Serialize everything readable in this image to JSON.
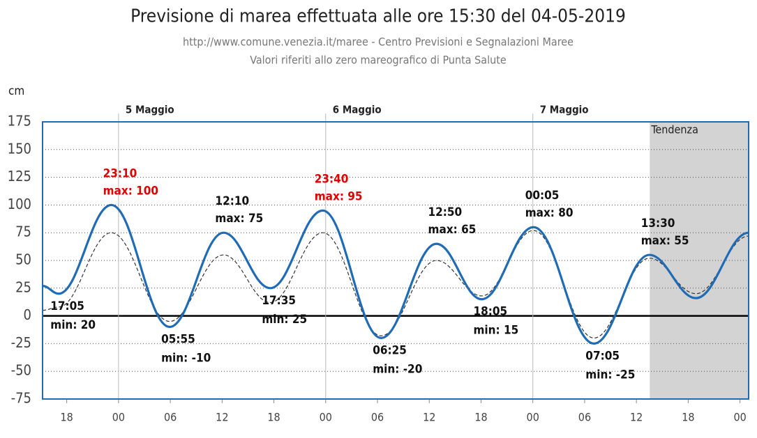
{
  "chart_data": {
    "type": "line",
    "title": "Previsione di marea effettuata alle ore 15:30 del 04-05-2019",
    "subtitle": [
      "http://www.comune.venezia.it/maree - Centro Previsioni e Segnalazioni Maree",
      "Valori riferiti allo zero mareografico di Punta Salute"
    ],
    "y_label": "cm",
    "x": [
      -8.8,
      -6.92,
      -0.83,
      5.92,
      12.17,
      17.58,
      23.67,
      30.42,
      36.83,
      42.08,
      48.08,
      55.08,
      61.5,
      66.9,
      73
    ],
    "series": [
      {
        "color": "#1f6bb5",
        "dashed": false,
        "values": [
          27,
          20,
          100,
          -10,
          75,
          25,
          95,
          -20,
          65,
          15,
          80,
          -25,
          55,
          16,
          75
        ]
      },
      {
        "color": "#333333",
        "dashed": true,
        "values": [
          5,
          8,
          75,
          -5,
          55,
          12,
          75,
          -18,
          50,
          18,
          77,
          -20,
          52,
          20,
          72
        ]
      }
    ],
    "annotations": [
      {
        "time": "17:05",
        "label": "min: 20"
      },
      {
        "time": "23:10",
        "label": "max: 100",
        "color": "#e00000"
      },
      {
        "time": "05:55",
        "label": "min: -10"
      },
      {
        "time": "12:10",
        "label": "max: 75"
      },
      {
        "time": "17:35",
        "label": "min: 25"
      },
      {
        "time": "23:40",
        "label": "max: 95",
        "color": "#e00000"
      },
      {
        "time": "06:25",
        "label": "min: -20"
      },
      {
        "time": "12:50",
        "label": "max: 65"
      },
      {
        "time": "18:05",
        "label": "min: 15"
      },
      {
        "time": "00:05",
        "label": "max: 80"
      },
      {
        "time": "07:05",
        "label": "min: -25"
      },
      {
        "time": "13:30",
        "label": "max: 55"
      }
    ],
    "days": [
      {
        "label": "5 Maggio",
        "x": 0
      },
      {
        "label": "6 Maggio",
        "x": 24
      },
      {
        "label": "7 Maggio",
        "x": 48
      }
    ],
    "trend": {
      "label": "Tendenza",
      "from": 61.55
    },
    "xlim": [
      -8.8,
      73
    ],
    "xticks": [
      {
        "value": -6,
        "label": "18"
      },
      {
        "value": 0,
        "label": "00"
      },
      {
        "value": 6,
        "label": "06"
      },
      {
        "value": 12,
        "label": "12"
      },
      {
        "value": 18,
        "label": "18"
      },
      {
        "value": 24,
        "label": "00"
      },
      {
        "value": 30,
        "label": "06"
      },
      {
        "value": 36,
        "label": "12"
      },
      {
        "value": 42,
        "label": "18"
      },
      {
        "value": 48,
        "label": "00"
      },
      {
        "value": 54,
        "label": "06"
      },
      {
        "value": 60,
        "label": "12"
      },
      {
        "value": 66,
        "label": "18"
      },
      {
        "value": 72,
        "label": "00"
      }
    ],
    "ylim": [
      -75,
      175
    ],
    "yticks": [
      175,
      150,
      125,
      100,
      75,
      50,
      25,
      0,
      -25,
      -50,
      -75
    ],
    "grid": true
  }
}
